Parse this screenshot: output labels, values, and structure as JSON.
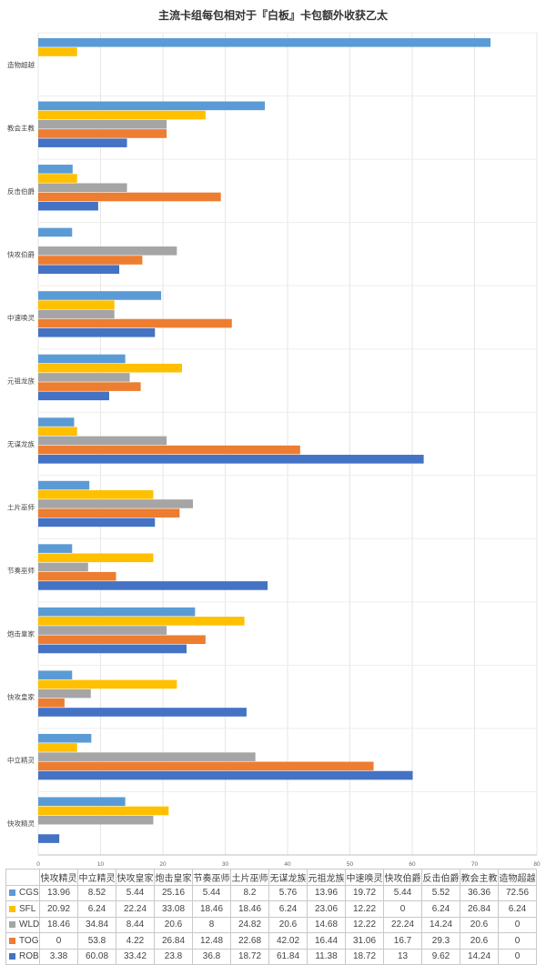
{
  "chart_data": {
    "type": "bar",
    "orientation": "horizontal",
    "title": "主流卡组每包相对于『白板』卡包额外收获乙太",
    "categories": [
      "快攻精灵",
      "中立精灵",
      "快攻皇家",
      "炮击皇家",
      "节奏巫师",
      "土片巫师",
      "无谋龙族",
      "元祖龙族",
      "中速唤灵",
      "快攻伯爵",
      "反击伯爵",
      "教会主教",
      "造物超越"
    ],
    "series": [
      {
        "name": "CGS",
        "color": "#5b9bd5",
        "values": [
          13.96,
          8.52,
          5.44,
          25.16,
          5.44,
          8.2,
          5.76,
          13.96,
          19.72,
          5.44,
          5.52,
          36.36,
          72.56
        ]
      },
      {
        "name": "SFL",
        "color": "#ffc000",
        "values": [
          20.92,
          6.24,
          22.24,
          33.08,
          18.46,
          18.46,
          6.24,
          23.06,
          12.22,
          0,
          6.24,
          26.84,
          6.24
        ]
      },
      {
        "name": "WLD",
        "color": "#a5a5a5",
        "values": [
          18.46,
          34.84,
          8.44,
          20.6,
          8,
          24.82,
          20.6,
          14.68,
          12.22,
          22.24,
          14.24,
          20.6,
          0
        ]
      },
      {
        "name": "TOG",
        "color": "#ed7d31",
        "values": [
          0,
          53.8,
          4.22,
          26.84,
          12.48,
          22.68,
          42.02,
          16.44,
          31.06,
          16.7,
          29.3,
          20.6,
          0
        ]
      },
      {
        "name": "ROB",
        "color": "#4472c4",
        "values": [
          3.38,
          60.08,
          33.42,
          23.8,
          36.8,
          18.72,
          61.84,
          11.38,
          18.72,
          13,
          9.62,
          14.24,
          0
        ]
      }
    ],
    "table_rows": [
      [
        "13.96",
        "8.52",
        "5.44",
        "25.16",
        "5.44",
        "8.2",
        "5.76",
        "13.96",
        "19.72",
        "5.44",
        "5.52",
        "36.36",
        "72.56"
      ],
      [
        "20.92",
        "6.24",
        "22.24",
        "33.08",
        "18.46",
        "18.46",
        "6.24",
        "23.06",
        "12.22",
        "0",
        "6.24",
        "26.84",
        "6.24"
      ],
      [
        "18.46",
        "34.84",
        "8.44",
        "20.6",
        "8",
        "24.82",
        "20.6",
        "14.68",
        "12.22",
        "22.24",
        "14.24",
        "20.6",
        "0"
      ],
      [
        "0",
        "53.8",
        "4.22",
        "26.84",
        "12.48",
        "22.68",
        "42.02",
        "16.44",
        "31.06",
        "16.7",
        "29.3",
        "20.6",
        "0"
      ],
      [
        "3.38",
        "60.08",
        "33.42",
        "23.8",
        "36.8",
        "18.72",
        "61.84",
        "11.38",
        "18.72",
        "13",
        "9.62",
        "14.24",
        "0"
      ]
    ],
    "xlim": [
      0,
      80
    ],
    "xticks": [
      "0",
      "10",
      "20",
      "30",
      "40",
      "50",
      "60",
      "70",
      "80"
    ],
    "grid": true,
    "legend": "data-table"
  }
}
